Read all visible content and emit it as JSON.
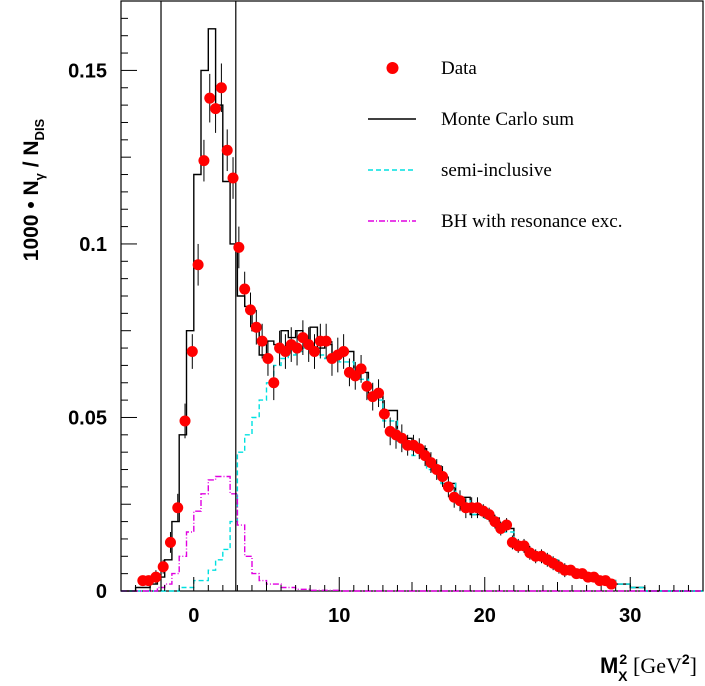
{
  "chart_data": {
    "type": "line",
    "title": "",
    "xlabel": {
      "base": "M",
      "sub": "X",
      "sup": "2",
      "units_open": " [GeV",
      "units_sup": "2",
      "units_close": "]"
    },
    "ylabel": {
      "prefix": "1000 • N",
      "sub1": "γ",
      "mid": " / N",
      "sub2": "DIS"
    },
    "xlim": [
      -5,
      35
    ],
    "ylim": [
      0,
      0.17
    ],
    "x_ticks": [
      0,
      10,
      20,
      30
    ],
    "x_tick_labels": [
      "0",
      "10",
      "20",
      "30"
    ],
    "y_ticks": [
      0,
      0.05,
      0.1,
      0.15
    ],
    "y_tick_labels": [
      "0",
      "0.05",
      "0.1",
      "0.15"
    ],
    "grid": false,
    "legend_position": "top-right",
    "cut_lines_x": [
      -2.25,
      2.89
    ],
    "colors": {
      "data": "#ff0000",
      "mc_sum": "#000000",
      "semi_inclusive": "#00e0e0",
      "bh": "#e000e0"
    },
    "series": [
      {
        "name": "Data",
        "kind": "points",
        "x": [
          -3.5,
          -3.1,
          -2.6,
          -2.1,
          -1.6,
          -1.1,
          -0.6,
          -0.1,
          0.3,
          0.7,
          1.1,
          1.5,
          1.9,
          2.3,
          2.7,
          3.1,
          3.5,
          3.9,
          4.3,
          4.7,
          5.1,
          5.5,
          5.9,
          6.3,
          6.7,
          7.1,
          7.5,
          7.9,
          8.3,
          8.7,
          9.1,
          9.5,
          9.9,
          10.3,
          10.7,
          11.1,
          11.5,
          11.9,
          12.3,
          12.7,
          13.1,
          13.5,
          13.9,
          14.3,
          14.7,
          15.1,
          15.5,
          15.9,
          16.3,
          16.7,
          17.1,
          17.5,
          17.9,
          18.3,
          18.7,
          19.1,
          19.5,
          19.9,
          20.3,
          20.7,
          21.1,
          21.5,
          21.9,
          22.3,
          22.7,
          23.1,
          23.5,
          23.9,
          24.3,
          24.7,
          25.1,
          25.5,
          25.9,
          26.3,
          26.7,
          27.1,
          27.5,
          27.9,
          28.3,
          28.7
        ],
        "y": [
          0.003,
          0.003,
          0.004,
          0.007,
          0.014,
          0.024,
          0.049,
          0.069,
          0.094,
          0.124,
          0.142,
          0.139,
          0.145,
          0.127,
          0.119,
          0.099,
          0.087,
          0.081,
          0.076,
          0.072,
          0.067,
          0.06,
          0.07,
          0.069,
          0.071,
          0.07,
          0.073,
          0.071,
          0.069,
          0.072,
          0.072,
          0.067,
          0.068,
          0.069,
          0.063,
          0.062,
          0.064,
          0.059,
          0.056,
          0.057,
          0.051,
          0.046,
          0.045,
          0.044,
          0.042,
          0.042,
          0.041,
          0.039,
          0.037,
          0.035,
          0.033,
          0.03,
          0.027,
          0.026,
          0.024,
          0.024,
          0.024,
          0.023,
          0.022,
          0.02,
          0.018,
          0.019,
          0.014,
          0.013,
          0.013,
          0.011,
          0.01,
          0.01,
          0.009,
          0.008,
          0.007,
          0.006,
          0.006,
          0.005,
          0.005,
          0.004,
          0.004,
          0.003,
          0.003,
          0.002
        ],
        "err": [
          0.001,
          0.001,
          0.002,
          0.002,
          0.003,
          0.004,
          0.005,
          0.005,
          0.006,
          0.006,
          0.007,
          0.007,
          0.007,
          0.006,
          0.006,
          0.006,
          0.005,
          0.005,
          0.005,
          0.005,
          0.005,
          0.005,
          0.005,
          0.005,
          0.005,
          0.005,
          0.005,
          0.005,
          0.005,
          0.005,
          0.005,
          0.005,
          0.005,
          0.005,
          0.004,
          0.004,
          0.004,
          0.004,
          0.004,
          0.004,
          0.004,
          0.004,
          0.004,
          0.004,
          0.003,
          0.003,
          0.003,
          0.003,
          0.003,
          0.003,
          0.003,
          0.003,
          0.003,
          0.003,
          0.003,
          0.003,
          0.003,
          0.002,
          0.002,
          0.002,
          0.002,
          0.002,
          0.002,
          0.002,
          0.002,
          0.002,
          0.002,
          0.002,
          0.002,
          0.002,
          0.002,
          0.002,
          0.001,
          0.001,
          0.001,
          0.001,
          0.001,
          0.001,
          0.001,
          0.001
        ]
      },
      {
        "name": "Monte Carlo sum",
        "kind": "step",
        "x": [
          -5,
          -4.5,
          -4,
          -3.5,
          -3,
          -2.5,
          -2,
          -1.5,
          -1,
          -0.5,
          0,
          0.5,
          1,
          1.5,
          2,
          2.5,
          3,
          3.5,
          4,
          4.5,
          5,
          5.5,
          6,
          6.5,
          7,
          7.5,
          8,
          8.5,
          9,
          9.5,
          10,
          11,
          12,
          13,
          14,
          15,
          16,
          17,
          18,
          19,
          20,
          21,
          22,
          23,
          24,
          25,
          26,
          27,
          28,
          29,
          30,
          31,
          32,
          35
        ],
        "y": [
          0.0,
          0.0,
          0.001,
          0.001,
          0.002,
          0.004,
          0.009,
          0.02,
          0.045,
          0.075,
          0.12,
          0.15,
          0.162,
          0.14,
          0.118,
          0.1,
          0.085,
          0.082,
          0.075,
          0.068,
          0.072,
          0.071,
          0.075,
          0.073,
          0.075,
          0.072,
          0.076,
          0.07,
          0.071,
          0.068,
          0.069,
          0.063,
          0.057,
          0.052,
          0.044,
          0.041,
          0.036,
          0.031,
          0.027,
          0.022,
          0.021,
          0.018,
          0.013,
          0.011,
          0.009,
          0.007,
          0.005,
          0.004,
          0.003,
          0.002,
          0.001,
          0.0,
          0.0,
          0.0
        ]
      },
      {
        "name": "semi-inclusive",
        "kind": "step",
        "x": [
          -5,
          -1,
          0,
          1,
          1.5,
          2,
          2.5,
          3,
          3.5,
          4,
          4.5,
          5,
          5.5,
          6,
          6.5,
          7,
          7.5,
          8,
          8.5,
          9,
          10,
          11,
          12,
          13,
          14,
          15,
          16,
          17,
          18,
          19,
          20,
          21,
          22,
          23,
          24,
          25,
          26,
          27,
          28,
          29,
          30,
          31,
          35
        ],
        "y": [
          0.0,
          0.001,
          0.003,
          0.006,
          0.009,
          0.012,
          0.02,
          0.04,
          0.045,
          0.05,
          0.055,
          0.06,
          0.065,
          0.067,
          0.068,
          0.069,
          0.07,
          0.069,
          0.068,
          0.067,
          0.066,
          0.061,
          0.055,
          0.049,
          0.043,
          0.039,
          0.035,
          0.031,
          0.026,
          0.022,
          0.021,
          0.017,
          0.013,
          0.011,
          0.009,
          0.007,
          0.005,
          0.004,
          0.003,
          0.002,
          0.001,
          0.0,
          0.0
        ]
      },
      {
        "name": "BH with resonance exc.",
        "kind": "step",
        "x": [
          -5,
          -2.5,
          -2,
          -1.5,
          -1,
          -0.5,
          0,
          0.5,
          1,
          1.5,
          2,
          2.5,
          3,
          3.5,
          4,
          4.5,
          5,
          6,
          7,
          8,
          10,
          35
        ],
        "y": [
          0.0,
          0.001,
          0.002,
          0.005,
          0.01,
          0.017,
          0.023,
          0.028,
          0.032,
          0.033,
          0.033,
          0.028,
          0.019,
          0.01,
          0.005,
          0.003,
          0.002,
          0.001,
          0.0005,
          0.0002,
          0.0,
          0.0
        ]
      }
    ]
  }
}
